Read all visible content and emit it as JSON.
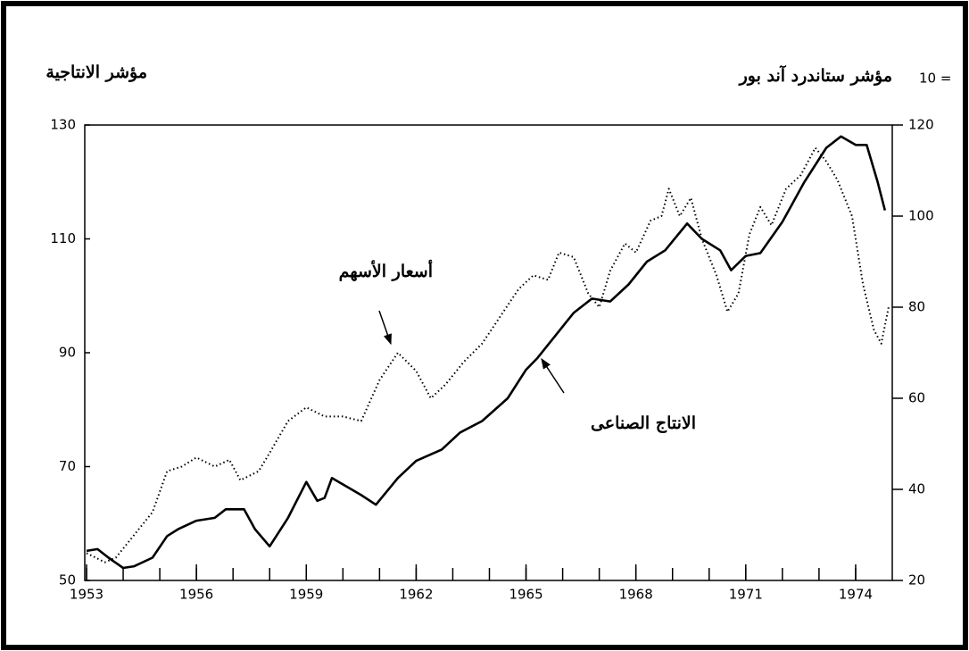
{
  "chart_data": {
    "type": "line",
    "y_label": "مؤشر الانتاجية",
    "y2_label": "مؤشر ستاندرد آند بور",
    "y2_label_base": "10 =",
    "xlim": [
      1953,
      1975
    ],
    "xticks": [
      1953,
      1956,
      1959,
      1962,
      1965,
      1968,
      1971,
      1974
    ],
    "xminorticks": [
      1953,
      1954,
      1955,
      1956,
      1957,
      1958,
      1959,
      1960,
      1961,
      1962,
      1963,
      1964,
      1965,
      1966,
      1967,
      1968,
      1969,
      1970,
      1971,
      1972,
      1973,
      1974
    ],
    "ylim": [
      50,
      130
    ],
    "yticks": [
      50,
      70,
      90,
      110,
      130
    ],
    "y2lim": [
      20,
      120
    ],
    "y2ticks": [
      20,
      40,
      60,
      80,
      100,
      120
    ],
    "series": [
      {
        "name": "الانتاج الصناعى",
        "color": "#000000",
        "style": "solid",
        "x": [
          1953.0,
          1953.3,
          1953.6,
          1954.0,
          1954.3,
          1954.8,
          1955.2,
          1955.5,
          1956.0,
          1956.5,
          1956.8,
          1957.3,
          1957.6,
          1958.0,
          1958.5,
          1959.0,
          1959.3,
          1959.5,
          1959.7,
          1960.5,
          1960.9,
          1961.5,
          1962.0,
          1962.7,
          1963.2,
          1963.8,
          1964.5,
          1965.0,
          1965.3,
          1965.8,
          1966.3,
          1966.8,
          1967.3,
          1967.8,
          1968.3,
          1968.8,
          1969.4,
          1969.8,
          1970.3,
          1970.6,
          1971.0,
          1971.4,
          1972.0,
          1972.6,
          1973.2,
          1973.6,
          1974.0,
          1974.3,
          1974.6,
          1974.8
        ],
        "values": [
          55.2,
          55.5,
          54,
          52.2,
          52.5,
          54,
          57.8,
          59,
          60.5,
          61,
          62.5,
          62.5,
          59,
          56,
          61,
          67.3,
          64,
          64.5,
          68,
          65,
          63.3,
          68,
          71,
          73,
          76,
          78,
          82,
          87,
          89,
          93,
          97,
          99.5,
          99,
          102,
          106,
          108,
          112.7,
          110,
          108,
          104.5,
          107,
          107.5,
          113,
          120,
          126,
          128,
          126.5,
          126.5,
          120,
          115
        ]
      },
      {
        "name": "أسعار الأسهم",
        "color": "#000000",
        "style": "dotted",
        "axis": "y2",
        "x": [
          1953.0,
          1953.5,
          1953.8,
          1954.3,
          1954.8,
          1955.2,
          1955.6,
          1956.0,
          1956.5,
          1956.9,
          1957.2,
          1957.7,
          1958.0,
          1958.5,
          1959.0,
          1959.5,
          1960.0,
          1960.5,
          1961.0,
          1961.5,
          1962.0,
          1962.4,
          1962.8,
          1963.3,
          1963.8,
          1964.3,
          1964.8,
          1965.2,
          1965.6,
          1965.9,
          1966.3,
          1966.7,
          1967.0,
          1967.3,
          1967.7,
          1968.0,
          1968.4,
          1968.7,
          1968.9,
          1969.2,
          1969.5,
          1969.8,
          1970.2,
          1970.5,
          1970.8,
          1971.1,
          1971.4,
          1971.7,
          1972.1,
          1972.5,
          1972.9,
          1973.2,
          1973.5,
          1973.9,
          1974.2,
          1974.5,
          1974.7,
          1974.9
        ],
        "values": [
          26,
          24,
          25,
          30,
          35,
          44,
          45,
          47,
          45,
          46.5,
          42,
          44,
          48,
          55,
          58,
          56,
          56,
          55,
          64,
          70,
          66,
          60,
          63,
          68,
          72,
          78,
          84,
          87,
          86,
          92,
          91,
          83,
          80,
          88,
          94,
          92,
          99,
          100,
          106,
          100,
          104,
          95,
          87,
          79,
          83,
          96,
          102,
          98,
          106,
          109,
          115,
          112,
          108,
          100,
          85,
          75,
          72,
          80
        ]
      }
    ]
  }
}
